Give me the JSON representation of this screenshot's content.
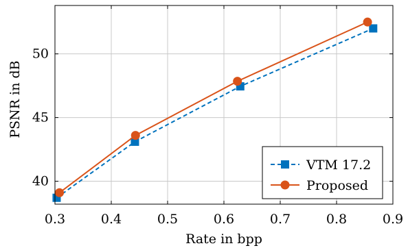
{
  "chart_data": {
    "type": "line",
    "xlabel": "Rate in bpp",
    "ylabel": "PSNR in dB",
    "xlim": [
      0.3,
      0.9
    ],
    "ylim": [
      38.2,
      53.8
    ],
    "xticks": [
      0.3,
      0.4,
      0.5,
      0.6,
      0.7,
      0.8,
      0.9
    ],
    "xtick_labels": [
      "0.3",
      "0.4",
      "0.5",
      "0.6",
      "0.7",
      "0.8",
      "0.9"
    ],
    "yticks": [
      40,
      45,
      50
    ],
    "ytick_labels": [
      "40",
      "45",
      "50"
    ],
    "grid": true,
    "legend_position": "bottom-right",
    "series": [
      {
        "name": "VTM 17.2",
        "x": [
          0.303,
          0.442,
          0.629,
          0.865
        ],
        "y": [
          38.7,
          43.1,
          47.45,
          52.0
        ],
        "color": "#0072BD",
        "line_style": "dashed",
        "marker": "square"
      },
      {
        "name": "Proposed",
        "x": [
          0.308,
          0.443,
          0.624,
          0.855
        ],
        "y": [
          39.1,
          43.6,
          47.85,
          52.5
        ],
        "color": "#D95319",
        "line_style": "solid",
        "marker": "circle"
      }
    ]
  }
}
